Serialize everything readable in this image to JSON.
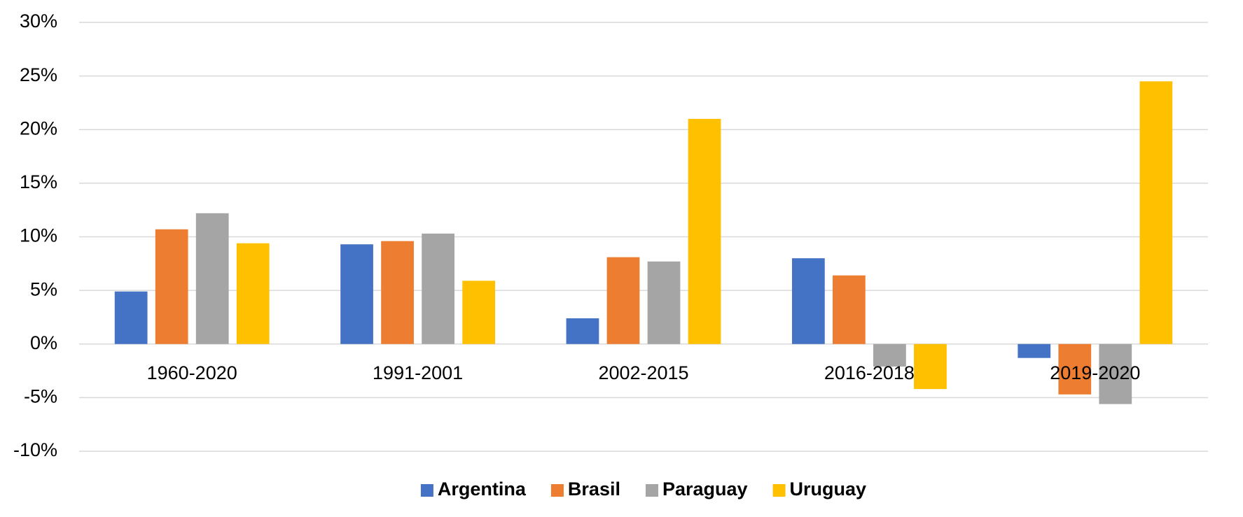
{
  "chart_data": {
    "type": "bar",
    "categories": [
      "1960-2020",
      "1991-2001",
      "2002-2015",
      "2016-2018",
      "2019-2020"
    ],
    "series": [
      {
        "name": "Argentina",
        "color": "#4472c4",
        "values": [
          4.9,
          9.3,
          2.4,
          8.0,
          -1.3
        ]
      },
      {
        "name": "Brasil",
        "color": "#ed7d31",
        "values": [
          10.7,
          9.6,
          8.1,
          6.4,
          -4.7
        ]
      },
      {
        "name": "Paraguay",
        "color": "#a5a5a5",
        "values": [
          12.2,
          10.3,
          7.7,
          -2.1,
          -5.6
        ]
      },
      {
        "name": "Uruguay",
        "color": "#ffc000",
        "values": [
          9.4,
          5.9,
          21.0,
          -4.2,
          24.5
        ]
      }
    ],
    "ylim": [
      -10,
      30
    ],
    "yticks": [
      {
        "value": -10,
        "label": "-10%"
      },
      {
        "value": -5,
        "label": "-5%"
      },
      {
        "value": 0,
        "label": "0%"
      },
      {
        "value": 5,
        "label": "5%"
      },
      {
        "value": 10,
        "label": "10%"
      },
      {
        "value": 15,
        "label": "15%"
      },
      {
        "value": 20,
        "label": "20%"
      },
      {
        "value": 25,
        "label": "25%"
      },
      {
        "value": 30,
        "label": "30%"
      }
    ],
    "grid": true,
    "legend": "bottom"
  }
}
